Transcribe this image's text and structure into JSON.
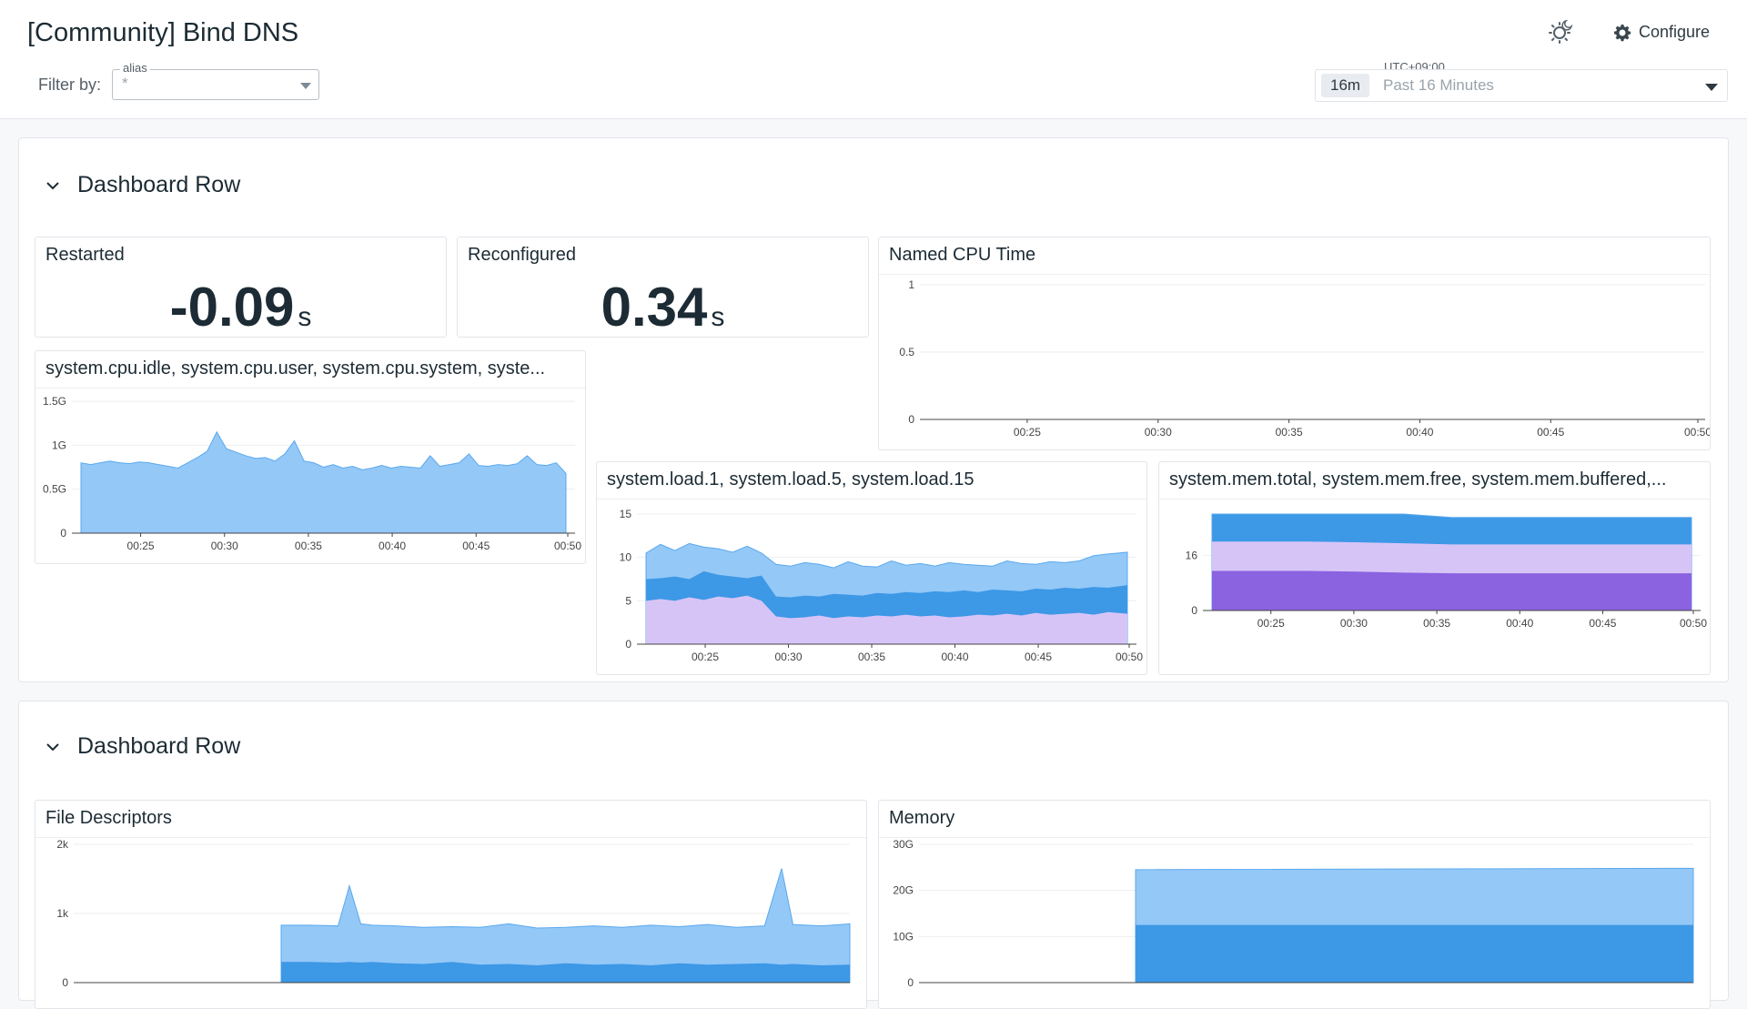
{
  "header": {
    "title": "[Community] Bind DNS",
    "filter_label": "Filter by:",
    "filter": {
      "legend": "alias",
      "value": "*"
    },
    "configure_label": "Configure",
    "timezone": "UTC+09:00",
    "time_badge": "16m",
    "time_range": "Past 16 Minutes"
  },
  "rows": [
    {
      "title": "Dashboard Row"
    },
    {
      "title": "Dashboard Row"
    }
  ],
  "widgets": {
    "restarted": {
      "title": "Restarted",
      "value": "-0.09",
      "unit": "s"
    },
    "reconfigured": {
      "title": "Reconfigured",
      "value": "0.34",
      "unit": "s"
    },
    "named_cpu": {
      "title": "Named CPU Time"
    },
    "cpu": {
      "title": "system.cpu.idle, system.cpu.user, system.cpu.system, syste..."
    },
    "load": {
      "title": "system.load.1, system.load.5, system.load.15"
    },
    "mem": {
      "title": "system.mem.total, system.mem.free, system.mem.buffered,..."
    },
    "fd": {
      "title": "File Descriptors"
    },
    "memory": {
      "title": "Memory"
    }
  },
  "colors": {
    "light_blue": "#94c8f7",
    "mid_blue": "#3d98e6",
    "lavender": "#d7c4f7",
    "purple": "#8b62e0",
    "line_blue": "#5aa9ee"
  },
  "chart_data": [
    {
      "id": "named_cpu",
      "type": "line",
      "title": "Named CPU Time",
      "x_ticks": [
        "00:25",
        "00:30",
        "00:35",
        "00:40",
        "00:45",
        "00:50"
      ],
      "y_ticks": [
        "0",
        "0.5",
        "1"
      ],
      "ylim": [
        0,
        1
      ],
      "series": []
    },
    {
      "id": "cpu",
      "type": "area",
      "title": "system.cpu.idle, system.cpu.user, system.cpu.system, syste...",
      "x_ticks": [
        "00:25",
        "00:30",
        "00:35",
        "00:40",
        "00:45",
        "00:50"
      ],
      "y_ticks": [
        "0",
        "0.5G",
        "1G",
        "1.5G"
      ],
      "ylim": [
        0,
        1.5
      ],
      "x": [
        0,
        2,
        4,
        6,
        8,
        10,
        12,
        14,
        16,
        18,
        20,
        22,
        24,
        26,
        28,
        30,
        32,
        34,
        36,
        38,
        40,
        42,
        44,
        46,
        48,
        50,
        52,
        54,
        56,
        58,
        60,
        62,
        64,
        66,
        68,
        70,
        72,
        74,
        76,
        78,
        80,
        82,
        84,
        86,
        88,
        90,
        92,
        94,
        96,
        98,
        100
      ],
      "series": [
        {
          "values": [
            0.8,
            0.78,
            0.8,
            0.82,
            0.8,
            0.79,
            0.81,
            0.8,
            0.78,
            0.76,
            0.74,
            0.8,
            0.86,
            0.93,
            1.15,
            0.96,
            0.92,
            0.88,
            0.85,
            0.86,
            0.82,
            0.9,
            1.05,
            0.82,
            0.8,
            0.75,
            0.78,
            0.74,
            0.76,
            0.72,
            0.74,
            0.77,
            0.74,
            0.76,
            0.75,
            0.74,
            0.88,
            0.76,
            0.78,
            0.8,
            0.9,
            0.77,
            0.76,
            0.78,
            0.77,
            0.79,
            0.88,
            0.78,
            0.77,
            0.8,
            0.68
          ]
        }
      ]
    },
    {
      "id": "load",
      "type": "area",
      "title": "system.load.1, system.load.5, system.load.15",
      "x_ticks": [
        "00:25",
        "00:30",
        "00:35",
        "00:40",
        "00:45",
        "00:50"
      ],
      "y_ticks": [
        "0",
        "5",
        "10",
        "15"
      ],
      "ylim": [
        0,
        15
      ],
      "x": [
        0,
        3,
        6,
        9,
        12,
        15,
        18,
        21,
        24,
        27,
        30,
        33,
        36,
        39,
        42,
        45,
        48,
        51,
        54,
        57,
        60,
        63,
        66,
        69,
        72,
        75,
        78,
        81,
        84,
        87,
        90,
        93,
        96,
        100
      ],
      "series": [
        {
          "values": [
            5,
            5.2,
            5,
            5.4,
            5.1,
            5.5,
            5.3,
            5.6,
            5.0,
            3.2,
            3.0,
            3.1,
            3.3,
            3.0,
            3.2,
            3.1,
            3.3,
            3.2,
            3.4,
            3.2,
            3.3,
            3.1,
            3.2,
            3.4,
            3.3,
            3.5,
            3.3,
            3.6,
            3.4,
            3.5,
            3.6,
            3.4,
            3.7,
            3.5
          ]
        },
        {
          "values": [
            7.5,
            7.6,
            7.8,
            7.5,
            8.4,
            8.0,
            7.8,
            7.6,
            7.9,
            5.5,
            5.4,
            5.6,
            5.5,
            5.8,
            5.7,
            5.6,
            5.9,
            5.8,
            6.0,
            5.9,
            6.1,
            6.0,
            6.2,
            6.0,
            6.3,
            6.2,
            6.1,
            6.4,
            6.3,
            6.5,
            6.4,
            6.6,
            6.5,
            6.8
          ]
        },
        {
          "values": [
            10.5,
            11.5,
            10.8,
            11.6,
            11.2,
            11.0,
            10.6,
            11.3,
            10.5,
            9.2,
            9.0,
            9.4,
            9.2,
            8.8,
            9.5,
            9.0,
            8.9,
            9.6,
            9.1,
            9.3,
            9.0,
            9.4,
            9.2,
            9.1,
            9.0,
            9.6,
            9.3,
            9.2,
            9.5,
            9.4,
            9.6,
            10.2,
            10.4,
            10.6
          ]
        }
      ]
    },
    {
      "id": "mem",
      "type": "area",
      "title": "system.mem.total, system.mem.free, system.mem.buffered,...",
      "x_ticks": [
        "00:25",
        "00:30",
        "00:35",
        "00:40",
        "00:45",
        "00:50"
      ],
      "y_ticks": [
        "0",
        "16"
      ],
      "ylim": [
        0,
        28
      ],
      "x": [
        0,
        10,
        20,
        30,
        40,
        50,
        60,
        70,
        80,
        90,
        100
      ],
      "series": [
        {
          "values": [
            11.5,
            11.5,
            11.5,
            11.3,
            11.0,
            10.8,
            10.8,
            10.8,
            10.8,
            10.8,
            10.8
          ]
        },
        {
          "values": [
            20,
            20,
            20,
            19.8,
            19.5,
            19.2,
            19.2,
            19.2,
            19.2,
            19.2,
            19.2
          ]
        },
        {
          "values": [
            28.5,
            28.5,
            28.5,
            28.3,
            28.0,
            27.0,
            27.0,
            27.0,
            27.0,
            27.0,
            27.0
          ]
        }
      ]
    },
    {
      "id": "fd",
      "type": "area",
      "title": "File Descriptors",
      "y_ticks": [
        "0",
        "1k",
        "2k"
      ],
      "ylim": [
        0,
        2
      ],
      "x": [
        0,
        5,
        10,
        12,
        14,
        16,
        20,
        25,
        30,
        35,
        40,
        45,
        50,
        55,
        60,
        65,
        70,
        75,
        80,
        85,
        88,
        90,
        95,
        100
      ],
      "series": [
        {
          "values": [
            0.3,
            0.3,
            0.29,
            0.3,
            0.29,
            0.3,
            0.28,
            0.27,
            0.3,
            0.26,
            0.27,
            0.25,
            0.28,
            0.26,
            0.27,
            0.25,
            0.28,
            0.26,
            0.27,
            0.28,
            0.26,
            0.27,
            0.25,
            0.26
          ]
        },
        {
          "values": [
            0.83,
            0.83,
            0.82,
            1.4,
            0.85,
            0.83,
            0.82,
            0.8,
            0.81,
            0.8,
            0.85,
            0.79,
            0.8,
            0.82,
            0.8,
            0.83,
            0.81,
            0.84,
            0.8,
            0.82,
            1.65,
            0.84,
            0.82,
            0.85
          ]
        }
      ]
    },
    {
      "id": "memory",
      "type": "area",
      "title": "Memory",
      "y_ticks": [
        "0",
        "10G",
        "20G",
        "30G"
      ],
      "ylim": [
        0,
        30
      ],
      "x": [
        0,
        100
      ],
      "series": [
        {
          "values": [
            12.5,
            12.5
          ]
        },
        {
          "values": [
            24.5,
            24.8
          ]
        }
      ]
    }
  ]
}
